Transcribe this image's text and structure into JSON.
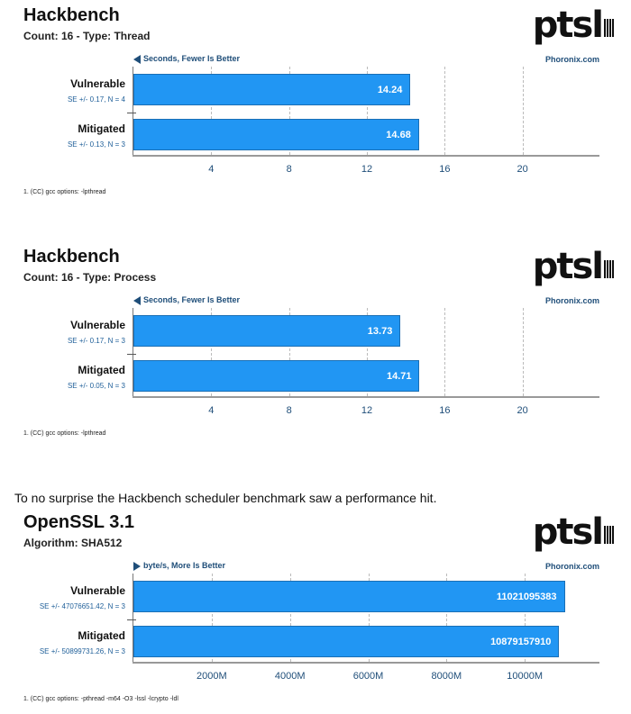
{
  "paragraph": "To no surprise the Hackbench scheduler benchmark saw a performance hit.",
  "logo_text": "ptsl",
  "chart_data": [
    {
      "type": "bar",
      "orientation": "horizontal",
      "title": "Hackbench",
      "subtitle": "Count: 16 - Type: Thread",
      "unit_label": "Seconds, Fewer Is Better",
      "direction": "left",
      "site": "Phoronix.com",
      "categories": [
        "Vulnerable",
        "Mitigated"
      ],
      "values": [
        14.24,
        14.68
      ],
      "value_labels": [
        "14.24",
        "14.68"
      ],
      "se": [
        "SE +/- 0.17, N = 4",
        "SE +/- 0.13, N = 3"
      ],
      "xlim": [
        0,
        24
      ],
      "ticks": [
        4,
        8,
        12,
        16,
        20
      ],
      "tick_labels": [
        "4",
        "8",
        "12",
        "16",
        "20"
      ],
      "footnote": "1. (CC) gcc options: -lpthread"
    },
    {
      "type": "bar",
      "orientation": "horizontal",
      "title": "Hackbench",
      "subtitle": "Count: 16 - Type: Process",
      "unit_label": "Seconds, Fewer Is Better",
      "direction": "left",
      "site": "Phoronix.com",
      "categories": [
        "Vulnerable",
        "Mitigated"
      ],
      "values": [
        13.73,
        14.71
      ],
      "value_labels": [
        "13.73",
        "14.71"
      ],
      "se": [
        "SE +/- 0.17, N = 3",
        "SE +/- 0.05, N = 3"
      ],
      "xlim": [
        0,
        24
      ],
      "ticks": [
        4,
        8,
        12,
        16,
        20
      ],
      "tick_labels": [
        "4",
        "8",
        "12",
        "16",
        "20"
      ],
      "footnote": "1. (CC) gcc options: -lpthread"
    },
    {
      "type": "bar",
      "orientation": "horizontal",
      "title": "OpenSSL 3.1",
      "subtitle": "Algorithm: SHA512",
      "unit_label": "byte/s, More Is Better",
      "direction": "right",
      "site": "Phoronix.com",
      "categories": [
        "Vulnerable",
        "Mitigated"
      ],
      "values": [
        11021095383,
        10879157910
      ],
      "value_labels": [
        "11021095383",
        "10879157910"
      ],
      "se": [
        "SE +/- 47076651.42, N = 3",
        "SE +/- 50899731.26, N = 3"
      ],
      "xlim": [
        0,
        11930000000
      ],
      "ticks": [
        2000000000,
        4000000000,
        6000000000,
        8000000000,
        10000000000
      ],
      "tick_labels": [
        "2000M",
        "4000M",
        "6000M",
        "8000M",
        "10000M"
      ],
      "footnote": "1. (CC) gcc options: -pthread -m64 -O3 -lssl -lcrypto -ldl"
    }
  ]
}
